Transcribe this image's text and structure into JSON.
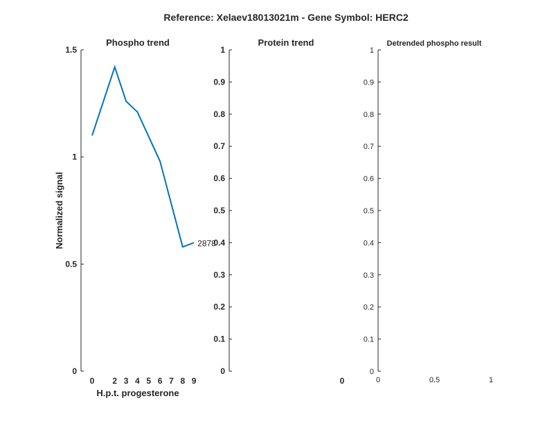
{
  "figure": {
    "title": "Reference:  Xelaev18013021m - Gene Symbol:  HERC2"
  },
  "colors": {
    "line": "#0072BD",
    "axis": "#262626"
  },
  "chart_data": [
    {
      "type": "line",
      "title": "Phospho trend",
      "xlabel": "H.p.t. progesterone",
      "ylabel": "Normalized signal",
      "x": [
        0,
        2,
        3,
        4,
        6,
        8,
        9
      ],
      "xticks": [
        "0",
        "2",
        "3",
        "4",
        "5",
        "6",
        "7",
        "8",
        "9"
      ],
      "ylim": [
        0,
        1.5
      ],
      "yticks": [
        "0",
        "0.5",
        "1",
        "1.5"
      ],
      "series": [
        {
          "values": [
            1.1,
            1.42,
            1.26,
            1.21,
            0.98,
            0.58,
            0.6
          ],
          "end_label": "2878"
        }
      ],
      "grid": false
    },
    {
      "type": "line",
      "title": "Protein trend",
      "xlabel": "",
      "ylabel": "",
      "ylim": [
        0,
        1
      ],
      "yticks": [
        "0",
        "0.1",
        "0.2",
        "0.3",
        "0.4",
        "0.5",
        "0.6",
        "0.7",
        "0.8",
        "0.9",
        "1"
      ],
      "xticks": [
        "0"
      ],
      "series": [],
      "grid": false
    },
    {
      "type": "line",
      "title": "Detrended phospho result",
      "xlabel": "",
      "ylabel": "",
      "xlim": [
        0,
        1
      ],
      "ylim": [
        0,
        1
      ],
      "yticks": [
        "0",
        "0.1",
        "0.2",
        "0.3",
        "0.4",
        "0.5",
        "0.6",
        "0.7",
        "0.8",
        "0.9",
        "1"
      ],
      "xticks": [
        "0",
        "0.5",
        "1"
      ],
      "series": [],
      "grid": false
    }
  ]
}
